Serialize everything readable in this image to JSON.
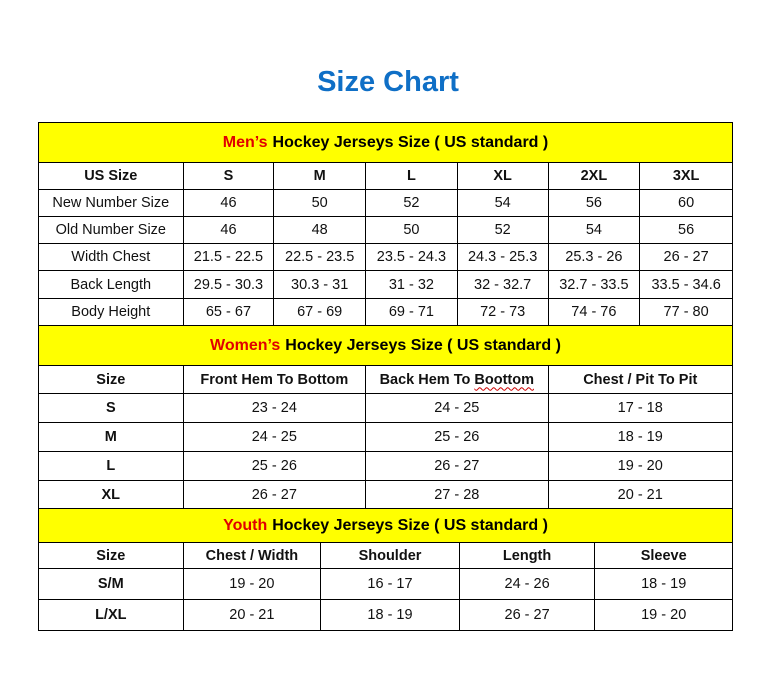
{
  "title": "Size Chart",
  "accent_color": "#0f6fc6",
  "band_color": "#ffff00",
  "highlight_color": "#e00000",
  "sections": [
    {
      "highlight": "Men’s",
      "heading": "Hockey Jerseys Size ( US standard )",
      "columns": [
        "US Size",
        "S",
        "M",
        "L",
        "XL",
        "2XL",
        "3XL"
      ],
      "rows": [
        [
          "New Number Size",
          "46",
          "50",
          "52",
          "54",
          "56",
          "60"
        ],
        [
          "Old Number Size",
          "46",
          "48",
          "50",
          "52",
          "54",
          "56"
        ],
        [
          "Width Chest",
          "21.5 - 22.5",
          "22.5 - 23.5",
          "23.5 - 24.3",
          "24.3 - 25.3",
          "25.3 - 26",
          "26 - 27"
        ],
        [
          "Back Length",
          "29.5 - 30.3",
          "30.3 - 31",
          "31 - 32",
          "32 - 32.7",
          "32.7 - 33.5",
          "33.5 - 34.6"
        ],
        [
          "Body Height",
          "65 - 67",
          "67 - 69",
          "69 - 71",
          "72 - 73",
          "74 - 76",
          "77 - 80"
        ]
      ]
    },
    {
      "highlight": "Women’s",
      "heading": "Hockey Jerseys Size ( US standard )",
      "columns": [
        "Size",
        "Front Hem To Bottom",
        "Back Hem To Boottom",
        "Chest / Pit To Pit"
      ],
      "rows": [
        [
          "S",
          "23 - 24",
          "24 - 25",
          "17 - 18"
        ],
        [
          "M",
          "24 - 25",
          "25 - 26",
          "18 - 19"
        ],
        [
          "L",
          "25 - 26",
          "26 - 27",
          "19 - 20"
        ],
        [
          "XL",
          "26 - 27",
          "27 - 28",
          "20 - 21"
        ]
      ]
    },
    {
      "highlight": "Youth",
      "heading": "Hockey Jerseys Size ( US standard )",
      "columns": [
        "Size",
        "Chest / Width",
        "Shoulder",
        "Length",
        "Sleeve"
      ],
      "rows": [
        [
          "S/M",
          "19 - 20",
          "16 - 17",
          "24 - 26",
          "18 - 19"
        ],
        [
          "L/XL",
          "20 - 21",
          "18 - 19",
          "26 - 27",
          "19 - 20"
        ]
      ]
    }
  ]
}
